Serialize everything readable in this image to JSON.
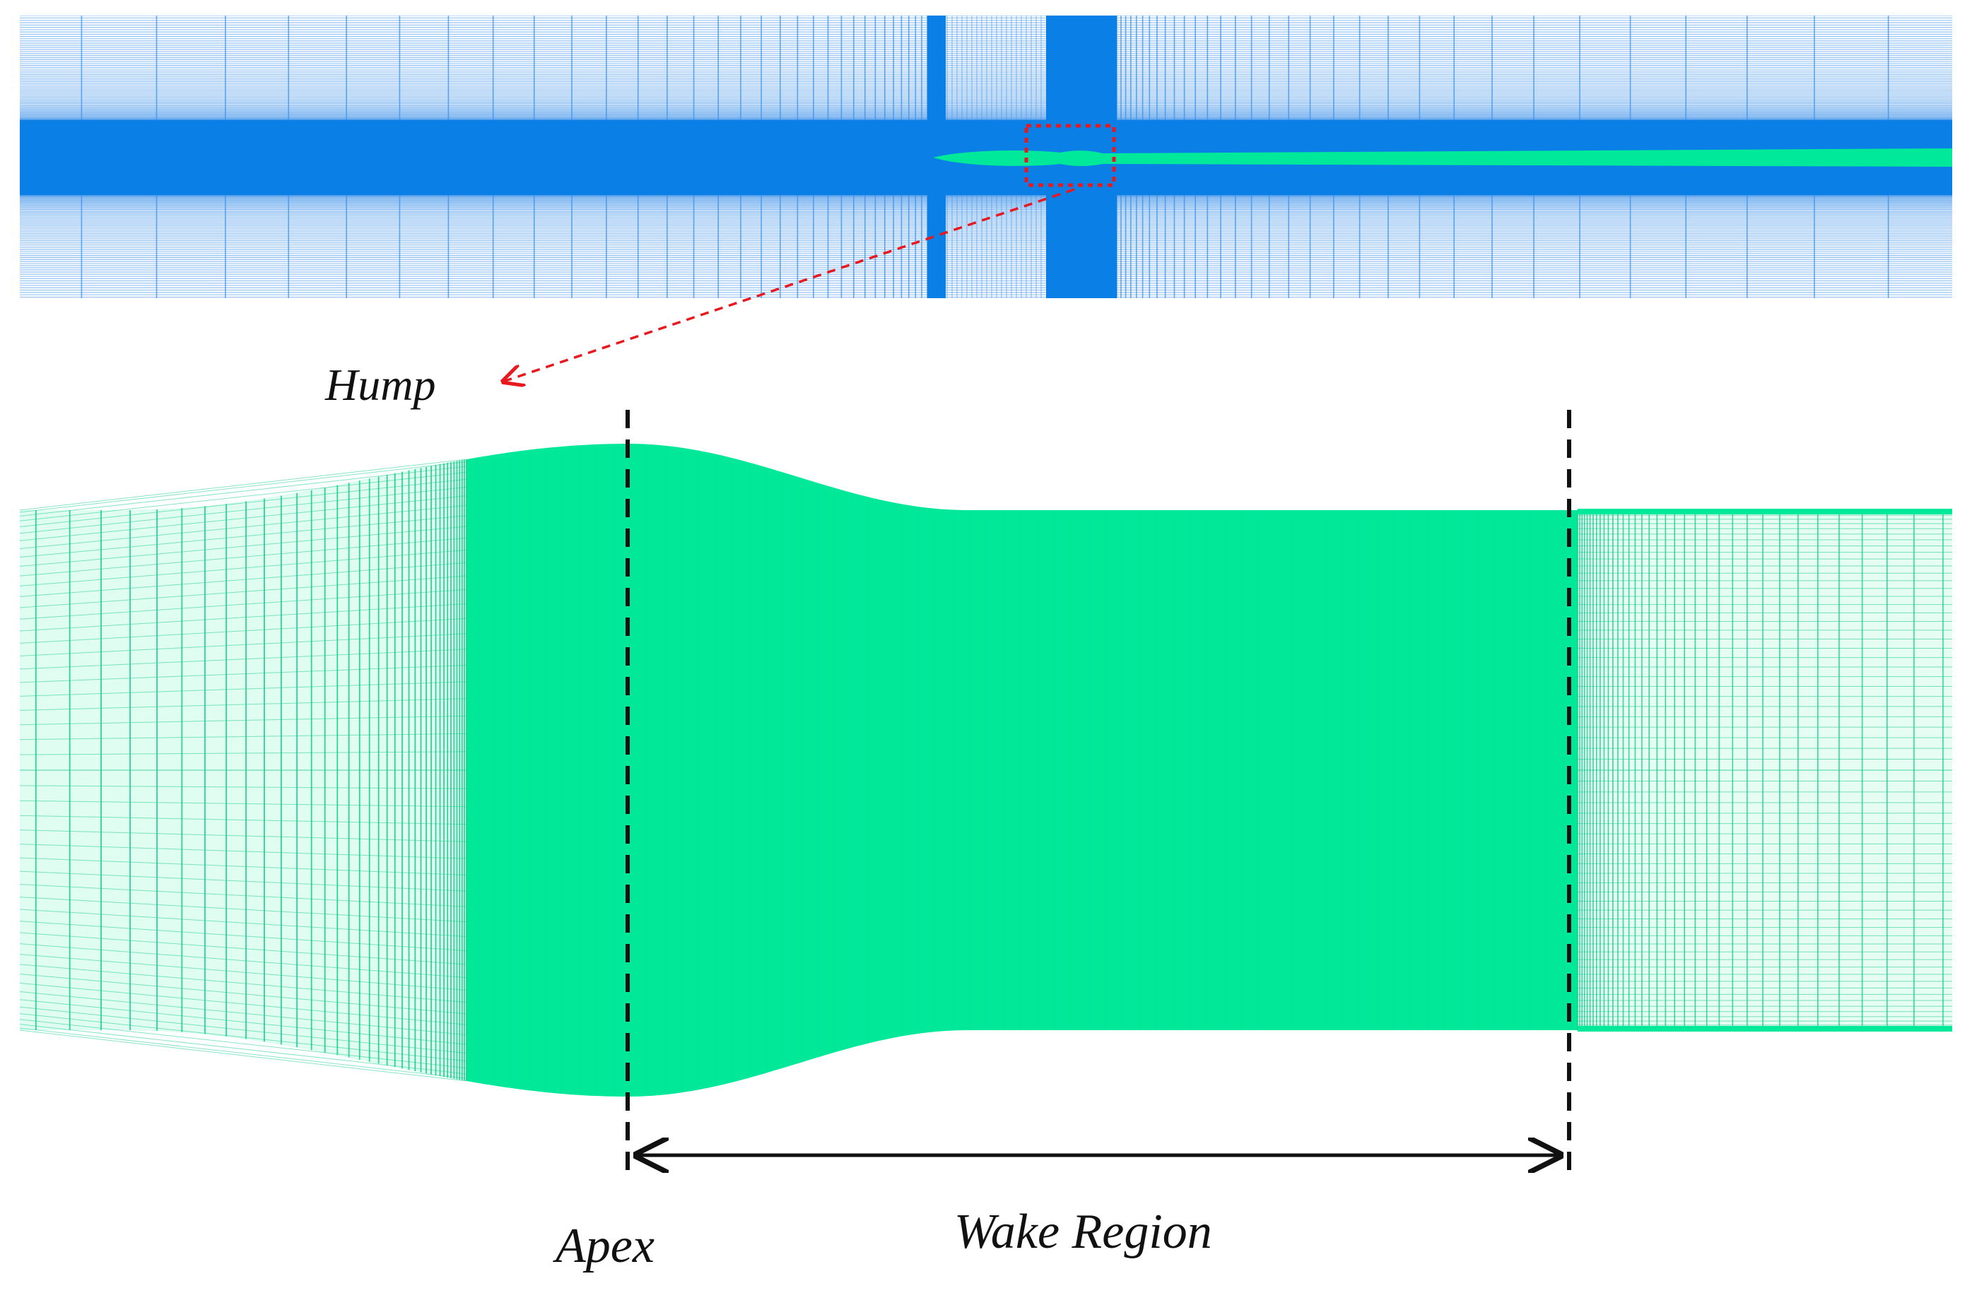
{
  "labels": {
    "hump": "Hump",
    "apex": "Apex",
    "wake_region": "Wake Region"
  },
  "colors": {
    "mesh_blue": "#0a7fe6",
    "mesh_line_blue": "#3a8fe8",
    "mesh_green": "#00e89a",
    "mesh_line_green": "#12c98a",
    "callout_red": "#e8191e",
    "annotation_black": "#111111"
  }
}
